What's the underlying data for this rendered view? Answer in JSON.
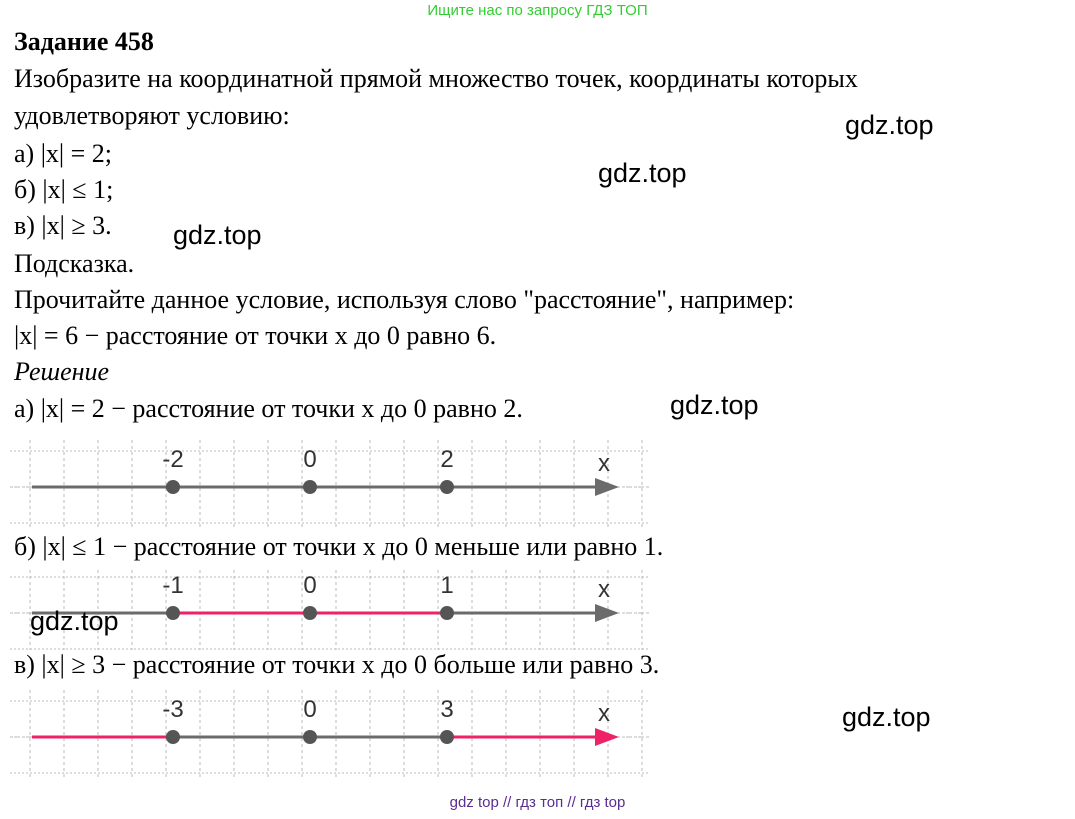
{
  "banner": "Ищите нас по запросу ГДЗ ТОП",
  "title": "Задание 458",
  "task_lines": [
    "Изобразите на координатной прямой множество точек, координаты которых",
    "удовлетворяют условию:",
    "а) |x| = 2;",
    "б) |x| ≤ 1;",
    "в) |x| ≥ 3."
  ],
  "hint_heading": "Подсказка.",
  "hint_lines": [
    "Прочитайте данное условие, используя слово \"расстояние\", например:",
    "|x| = 6 − расстояние от точки x до 0 равно 6."
  ],
  "solution_heading": "Решение",
  "solutions": [
    {
      "text": "а) |x| = 2 − расстояние от точки x до 0 равно 2.",
      "labels": [
        "-2",
        "0",
        "2"
      ],
      "axis": "x",
      "highlight": "none"
    },
    {
      "text": "б) |x| ≤ 1 − расстояние от точки x до 0 меньше или равно 1.",
      "labels": [
        "-1",
        "0",
        "1"
      ],
      "axis": "x",
      "highlight": "between"
    },
    {
      "text": "в) |x| ≥ 3 − расстояние от точки x до 0 больше или равно 3.",
      "labels": [
        "-3",
        "0",
        "3"
      ],
      "axis": "x",
      "highlight": "outside"
    }
  ],
  "watermark": "gdz.top",
  "footer": "gdz top  //  гдз топ  //  гдз top",
  "colors": {
    "highlight": "#ee2266",
    "axis": "#6b6b6b",
    "banner": "#33cc33",
    "footer": "#5a2d91"
  }
}
